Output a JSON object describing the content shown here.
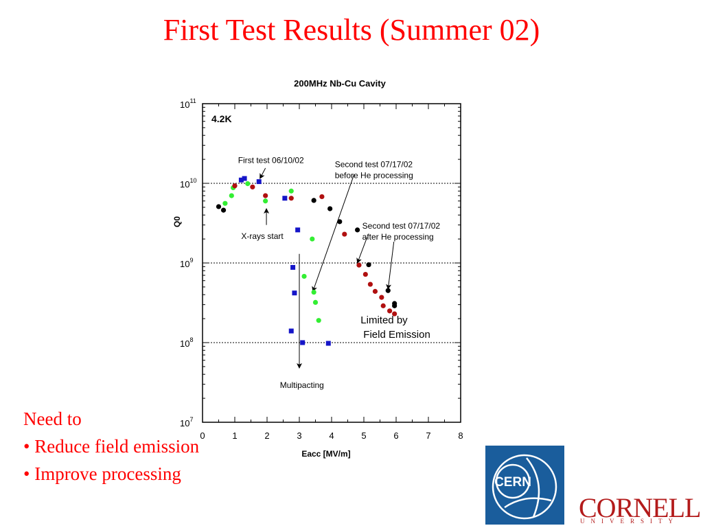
{
  "slide": {
    "title": "First Test Results (Summer 02)",
    "notes": [
      "Need to",
      "• Reduce field emission",
      "• Improve processing"
    ]
  },
  "logos": {
    "cern_text": "CERN",
    "cornell_word": "CORNELL",
    "cornell_sub": "UNIVERSITY"
  },
  "colors": {
    "title": "#ff0000",
    "blue": "#1515c8",
    "green": "#33ee33",
    "red": "#b01010",
    "black": "#000000",
    "cern_blue": "#1a5d9c",
    "cornell_red": "#b31b1b"
  },
  "chart_data": {
    "type": "scatter",
    "title": "200MHz Nb-Cu Cavity",
    "xlabel": "Eacc [MV/m]",
    "ylabel": "Q0",
    "xlim": [
      0,
      8
    ],
    "ylim": [
      10000000.0,
      100000000000.0
    ],
    "y_scale": "log",
    "x_ticks": [
      "0",
      "1",
      "2",
      "3",
      "4",
      "5",
      "6",
      "7",
      "8"
    ],
    "y_ticks": [
      {
        "base": "10",
        "exp": "7"
      },
      {
        "base": "10",
        "exp": "8"
      },
      {
        "base": "10",
        "exp": "9"
      },
      {
        "base": "10",
        "exp": "10"
      },
      {
        "base": "10",
        "exp": "11"
      }
    ],
    "grid": "dotted horizontal at decades",
    "temperature_label": "4.2K",
    "series": [
      {
        "marker": "square",
        "color": "#1515c8",
        "points": [
          [
            1.2,
            11000000000.0
          ],
          [
            1.3,
            11500000000.0
          ],
          [
            1.75,
            10500000000.0
          ],
          [
            2.55,
            6500000000.0
          ],
          [
            2.95,
            2600000000.0
          ],
          [
            2.8,
            880000000.0
          ],
          [
            2.85,
            420000000.0
          ],
          [
            2.75,
            140000000.0
          ],
          [
            3.1,
            100000000.0
          ],
          [
            3.9,
            98000000.0
          ]
        ]
      },
      {
        "marker": "circle",
        "color": "#33ee33",
        "points": [
          [
            0.7,
            5600000000.0
          ],
          [
            0.9,
            7000000000.0
          ],
          [
            0.95,
            8800000000.0
          ],
          [
            1.4,
            9900000000.0
          ],
          [
            1.95,
            6000000000.0
          ],
          [
            2.75,
            8000000000.0
          ],
          [
            3.4,
            2000000000.0
          ],
          [
            3.15,
            680000000.0
          ],
          [
            3.45,
            430000000.0
          ],
          [
            3.5,
            320000000.0
          ],
          [
            3.6,
            190000000.0
          ]
        ]
      },
      {
        "marker": "circle",
        "color": "#b01010",
        "points": [
          [
            1.0,
            9300000000.0
          ],
          [
            1.55,
            9000000000.0
          ],
          [
            1.95,
            7000000000.0
          ],
          [
            2.75,
            6500000000.0
          ],
          [
            3.7,
            6800000000.0
          ],
          [
            4.4,
            2300000000.0
          ],
          [
            4.85,
            940000000.0
          ],
          [
            5.05,
            720000000.0
          ],
          [
            5.2,
            540000000.0
          ],
          [
            5.35,
            440000000.0
          ],
          [
            5.55,
            370000000.0
          ],
          [
            5.6,
            290000000.0
          ],
          [
            5.8,
            250000000.0
          ],
          [
            5.95,
            230000000.0
          ]
        ]
      },
      {
        "marker": "circle",
        "color": "#000000",
        "points": [
          [
            0.5,
            5100000000.0
          ],
          [
            0.65,
            4600000000.0
          ],
          [
            3.45,
            6100000000.0
          ],
          [
            3.95,
            4800000000.0
          ],
          [
            4.25,
            3300000000.0
          ],
          [
            4.8,
            2600000000.0
          ],
          [
            5.15,
            950000000.0
          ],
          [
            5.75,
            450000000.0
          ],
          [
            5.95,
            310000000.0
          ],
          [
            5.95,
            290000000.0
          ]
        ]
      }
    ],
    "annotations": [
      {
        "lines": [
          "First test 06/10/02"
        ],
        "text_at": [
          1.1,
          18000000000.0
        ],
        "arrow_from": [
          1.95,
          15500000000.0
        ],
        "arrow_to": [
          1.78,
          11500000000.0
        ]
      },
      {
        "lines": [
          "Second test 07/17/02",
          "before He processing"
        ],
        "text_at": [
          4.1,
          16000000000.0
        ],
        "arrow_from": [
          4.7,
          13000000000.0
        ],
        "arrow_to": [
          3.42,
          440000000.0
        ]
      },
      {
        "lines": [
          "X-rays start"
        ],
        "text_at": [
          1.2,
          2000000000.0
        ],
        "arrow_from": [
          1.98,
          3000000000.0
        ],
        "arrow_to": [
          1.98,
          4800000000.0
        ]
      },
      {
        "lines": [
          "Second test 07/17/02",
          "after He processing"
        ],
        "text_at": [
          4.95,
          2700000000.0
        ],
        "arrow_from": [
          5.1,
          2100000000.0
        ],
        "arrow_to": [
          4.8,
          1000000000.0
        ]
      },
      {
        "lines": [],
        "text_at": null,
        "arrow_from": [
          5.93,
          1850000000.0
        ],
        "arrow_to": [
          5.75,
          470000000.0
        ]
      },
      {
        "lines": [
          "Limited by",
          "Field Emission"
        ],
        "text_at": [
          4.9,
          175000000.0
        ],
        "arrow_from": null,
        "arrow_to": null
      },
      {
        "lines": [
          "Multipacting"
        ],
        "text_at": [
          2.4,
          27000000.0
        ],
        "arrow_from": [
          3.0,
          1300000000.0
        ],
        "arrow_to": [
          3.0,
          48000000.0
        ]
      }
    ]
  }
}
